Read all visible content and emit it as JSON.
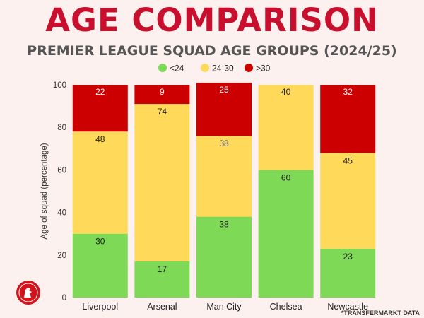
{
  "title": "AGE COMPARISON",
  "subtitle": "PREMIER LEAGUE SQUAD AGE GROUPS (2024/25)",
  "source": "*TRANSFERMARKT DATA",
  "colors": {
    "under24": "#7ed957",
    "mid": "#ffd95a",
    "over30": "#cc0000",
    "title": "#c8102e"
  },
  "chart_data": {
    "type": "bar",
    "stacked": true,
    "categories": [
      "Liverpool",
      "Arsenal",
      "Man City",
      "Chelsea",
      "Newcastle"
    ],
    "series": [
      {
        "name": "<24",
        "color": "#7ed957",
        "values": [
          30,
          17,
          38,
          60,
          23
        ]
      },
      {
        "name": "24-30",
        "color": "#ffd95a",
        "values": [
          48,
          74,
          38,
          40,
          45
        ]
      },
      {
        "name": ">30",
        "color": "#cc0000",
        "values": [
          22,
          9,
          25,
          0,
          32
        ]
      }
    ],
    "ylabel": "Age of squad (percentage)",
    "ylim": [
      0,
      100
    ],
    "yticks": [
      0,
      20,
      40,
      60,
      80,
      100
    ],
    "legend_position": "top-center",
    "grid": false
  }
}
